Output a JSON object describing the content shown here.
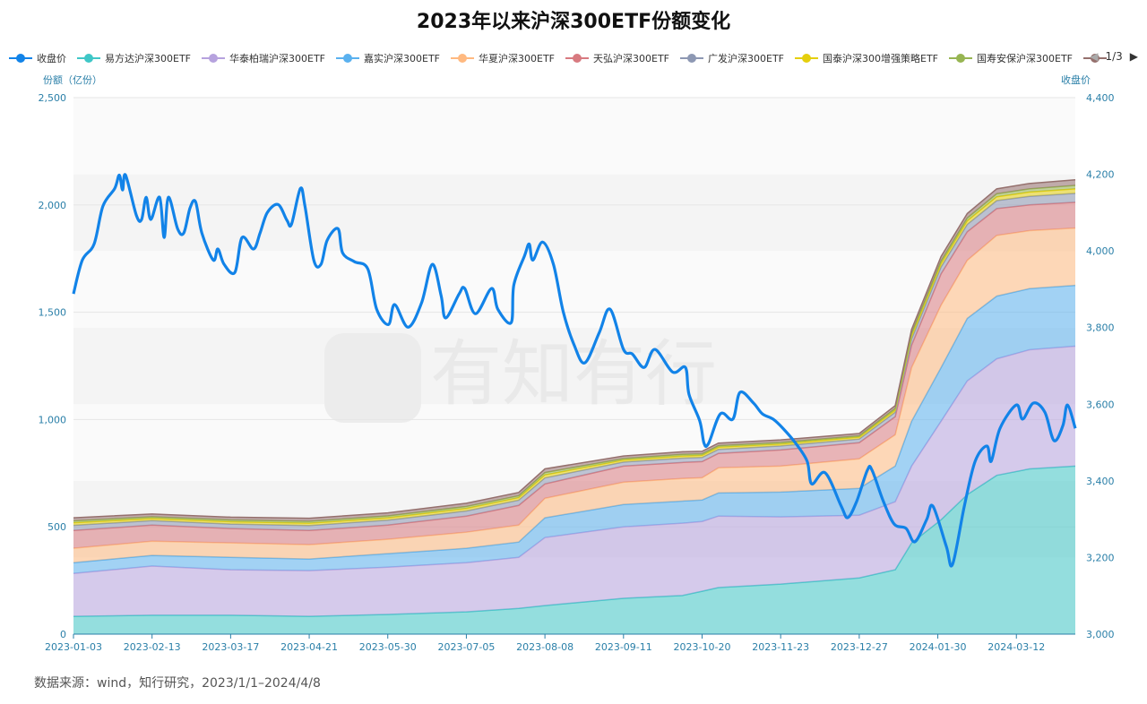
{
  "chart_data": {
    "type": "area",
    "title": "2023年以来沪深300ETF份额变化",
    "ylabel_left": "份额（亿份）",
    "ylabel_right": "收盘价",
    "ylim_left": [
      0,
      2500
    ],
    "ylim_right": [
      3000,
      4400
    ],
    "yticks_left": [
      "0",
      "500",
      "1,000",
      "1,500",
      "2,000",
      "2,500"
    ],
    "yticks_right": [
      "3,000",
      "3,200",
      "3,400",
      "3,600",
      "3,800",
      "4,000",
      "4,200",
      "4,400"
    ],
    "x_range": [
      0,
      306
    ],
    "x_tick_step": 24,
    "xticks": [
      "2023-01-03",
      "2023-02-13",
      "2023-03-17",
      "2023-04-21",
      "2023-05-30",
      "2023-07-05",
      "2023-08-08",
      "2023-09-11",
      "2023-10-20",
      "2023-11-23",
      "2023-12-27",
      "2024-01-30",
      "2024-03-12"
    ],
    "x_unit": "trading day index",
    "sample_x": [
      0,
      24,
      48,
      72,
      96,
      120,
      136,
      144,
      168,
      186,
      192,
      197,
      216,
      240,
      251,
      256,
      265,
      273,
      282,
      292,
      306
    ],
    "series": [
      {
        "name": "易方达沪深300ETF",
        "color": "#3fc7c7",
        "values": [
          83,
          88,
          88,
          83,
          92,
          104,
          120,
          133,
          167,
          180,
          200,
          217,
          233,
          262,
          300,
          425,
          533,
          650,
          740,
          770,
          783
        ]
      },
      {
        "name": "华泰柏瑞沪深300ETF",
        "color": "#b6a2de",
        "values": [
          200,
          229,
          212,
          213,
          220,
          229,
          238,
          317,
          333,
          337,
          325,
          333,
          313,
          292,
          317,
          358,
          459,
          530,
          543,
          555,
          559
        ]
      },
      {
        "name": "嘉实沪深300ETF",
        "color": "#5ab1ef",
        "values": [
          50,
          50,
          58,
          54,
          63,
          67,
          71,
          92,
          104,
          103,
          100,
          108,
          116,
          125,
          166,
          209,
          250,
          291,
          292,
          285,
          283
        ]
      },
      {
        "name": "华夏沪深300ETF",
        "color": "#ffb980",
        "values": [
          67,
          66,
          67,
          67,
          67,
          75,
          79,
          91,
          104,
          105,
          104,
          117,
          121,
          138,
          146,
          250,
          291,
          271,
          283,
          270,
          267
        ]
      },
      {
        "name": "天弘沪深300ETF",
        "color": "#d87a80",
        "values": [
          83,
          75,
          67,
          66,
          66,
          75,
          92,
          67,
          75,
          75,
          75,
          67,
          75,
          75,
          84,
          104,
          146,
          133,
          125,
          120,
          120
        ]
      },
      {
        "name": "广发沪深300ETF",
        "color": "#8d98b3",
        "values": [
          24,
          21,
          21,
          23,
          23,
          24,
          24,
          28,
          19,
          20,
          19,
          19,
          19,
          17,
          21,
          30,
          32,
          34,
          37,
          40,
          42
        ]
      },
      {
        "name": "国泰沪深300增强策略ETF",
        "color": "#e5cf0d",
        "values": [
          12,
          10,
          11,
          11,
          11,
          12,
          12,
          14,
          9,
          10,
          10,
          10,
          9,
          9,
          10,
          15,
          16,
          17,
          18,
          20,
          21
        ]
      },
      {
        "name": "国寿安保沪深300ETF",
        "color": "#97b552",
        "values": [
          9,
          8,
          8,
          9,
          9,
          9,
          9,
          11,
          7,
          8,
          7,
          7,
          7,
          6,
          8,
          11,
          12,
          13,
          14,
          15,
          16
        ]
      },
      {
        "name": "",
        "color": "#95706d",
        "values": [
          14,
          13,
          13,
          14,
          14,
          15,
          15,
          17,
          12,
          12,
          12,
          12,
          12,
          11,
          13,
          18,
          21,
          21,
          23,
          25,
          26
        ]
      }
    ],
    "close": {
      "name": "收盘价",
      "color": "#1283e8",
      "points": [
        [
          0,
          3888
        ],
        [
          2.7,
          3976
        ],
        [
          6.3,
          4018
        ],
        [
          9,
          4117
        ],
        [
          12.6,
          4163
        ],
        [
          14,
          4198
        ],
        [
          15,
          4159
        ],
        [
          15.9,
          4198
        ],
        [
          19.2,
          4093
        ],
        [
          20.8,
          4082
        ],
        [
          22.2,
          4140
        ],
        [
          23.6,
          4082
        ],
        [
          26.3,
          4140
        ],
        [
          27.7,
          4035
        ],
        [
          29,
          4140
        ],
        [
          31.8,
          4058
        ],
        [
          33.7,
          4047
        ],
        [
          35.6,
          4112
        ],
        [
          37.3,
          4128
        ],
        [
          39.2,
          4047
        ],
        [
          42.7,
          3976
        ],
        [
          44.1,
          4005
        ],
        [
          46,
          3965
        ],
        [
          49.3,
          3944
        ],
        [
          51.5,
          4035
        ],
        [
          55,
          4005
        ],
        [
          57,
          4047
        ],
        [
          59.2,
          4100
        ],
        [
          62.5,
          4121
        ],
        [
          65.2,
          4080
        ],
        [
          66.6,
          4070
        ],
        [
          69.3,
          4163
        ],
        [
          70.7,
          4117
        ],
        [
          73.4,
          3976
        ],
        [
          75.6,
          3965
        ],
        [
          77.5,
          4028
        ],
        [
          80.8,
          4058
        ],
        [
          82.2,
          3995
        ],
        [
          85.8,
          3972
        ],
        [
          89.9,
          3953
        ],
        [
          92.6,
          3848
        ],
        [
          96.2,
          3808
        ],
        [
          98.1,
          3860
        ],
        [
          102.2,
          3801
        ],
        [
          106.3,
          3864
        ],
        [
          109.6,
          3965
        ],
        [
          112.3,
          3883
        ],
        [
          113.7,
          3825
        ],
        [
          117.8,
          3888
        ],
        [
          119.5,
          3902
        ],
        [
          122.8,
          3836
        ],
        [
          127.7,
          3902
        ],
        [
          129.6,
          3848
        ],
        [
          133.7,
          3813
        ],
        [
          134.5,
          3911
        ],
        [
          137.8,
          3988
        ],
        [
          139.2,
          4018
        ],
        [
          140.3,
          3976
        ],
        [
          143.3,
          4023
        ],
        [
          146.6,
          3965
        ],
        [
          149.6,
          3841
        ],
        [
          152.9,
          3755
        ],
        [
          156.2,
          3708
        ],
        [
          160.6,
          3787
        ],
        [
          163.9,
          3848
        ],
        [
          168,
          3743
        ],
        [
          170.7,
          3731
        ],
        [
          174.3,
          3696
        ],
        [
          177.6,
          3743
        ],
        [
          183,
          3684
        ],
        [
          186.9,
          3696
        ],
        [
          188,
          3626
        ],
        [
          191.3,
          3556
        ],
        [
          192.6,
          3498
        ],
        [
          194,
          3498
        ],
        [
          197.6,
          3575
        ],
        [
          201.4,
          3561
        ],
        [
          203.6,
          3631
        ],
        [
          207.7,
          3603
        ],
        [
          210.4,
          3575
        ],
        [
          213.7,
          3561
        ],
        [
          216.7,
          3537
        ],
        [
          220.6,
          3498
        ],
        [
          224.1,
          3451
        ],
        [
          225.5,
          3392
        ],
        [
          229.6,
          3421
        ],
        [
          234.5,
          3334
        ],
        [
          236.5,
          3304
        ],
        [
          239.2,
          3346
        ],
        [
          242.5,
          3428
        ],
        [
          243.9,
          3428
        ],
        [
          247.4,
          3346
        ],
        [
          250.7,
          3287
        ],
        [
          254.3,
          3276
        ],
        [
          257,
          3241
        ],
        [
          260.6,
          3299
        ],
        [
          262.5,
          3334
        ],
        [
          266.6,
          3229
        ],
        [
          268.5,
          3182
        ],
        [
          272.1,
          3334
        ],
        [
          275.4,
          3451
        ],
        [
          279,
          3491
        ],
        [
          280.3,
          3451
        ],
        [
          283,
          3537
        ],
        [
          288,
          3598
        ],
        [
          289.9,
          3561
        ],
        [
          293.2,
          3603
        ],
        [
          296.7,
          3579
        ],
        [
          299.5,
          3505
        ],
        [
          302.2,
          3544
        ],
        [
          303.6,
          3598
        ],
        [
          306,
          3537
        ]
      ]
    },
    "legend_position": "top",
    "grid": true
  },
  "legend": {
    "page": "1/3"
  },
  "watermark": "有知有行",
  "source": "数据来源：wind，知行研究，2023/1/1–2024/4/8"
}
